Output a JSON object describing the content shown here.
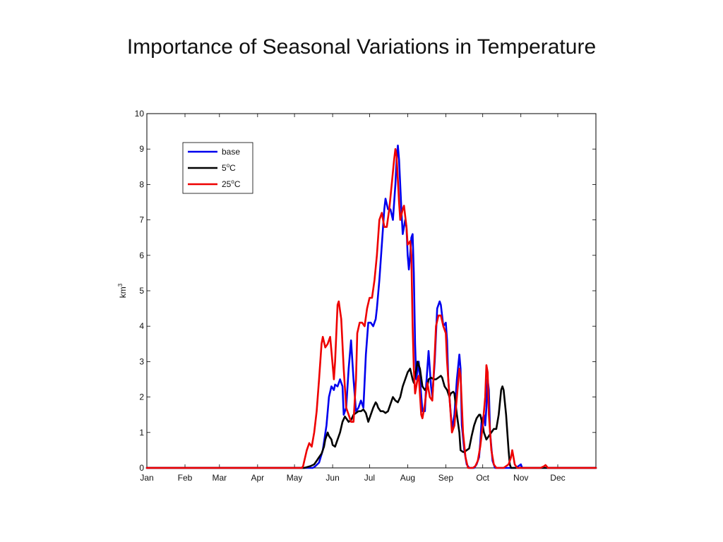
{
  "slide": {
    "title": "Importance of Seasonal Variations in Temperature"
  },
  "chart_data": {
    "type": "line",
    "ylabel": "km³",
    "xlabel": "",
    "ylim": [
      0,
      10
    ],
    "yticks": [
      0,
      1,
      2,
      3,
      4,
      5,
      6,
      7,
      8,
      9,
      10
    ],
    "xlim": [
      0,
      365
    ],
    "x_tick_labels": [
      "Jan",
      "Feb",
      "Mar",
      "Apr",
      "May",
      "Jun",
      "Jul",
      "Aug",
      "Sep",
      "Oct",
      "Nov",
      "Dec"
    ],
    "x_tick_days": [
      0,
      31,
      59,
      90,
      120,
      151,
      181,
      212,
      243,
      273,
      304,
      334
    ],
    "legend_position": "top-left",
    "grid": false,
    "series": [
      {
        "name": "base",
        "legend_base": "base",
        "legend_sup": "",
        "legend_tail": "",
        "color": "#0000ee",
        "points": [
          [
            0,
            0
          ],
          [
            120,
            0
          ],
          [
            135,
            0
          ],
          [
            137,
            0.05
          ],
          [
            140,
            0.15
          ],
          [
            143,
            0.5
          ],
          [
            146,
            1.2
          ],
          [
            148,
            2.0
          ],
          [
            150,
            2.3
          ],
          [
            152,
            2.2
          ],
          [
            153,
            2.35
          ],
          [
            155,
            2.3
          ],
          [
            157,
            2.5
          ],
          [
            159,
            2.3
          ],
          [
            160,
            1.5
          ],
          [
            162,
            1.7
          ],
          [
            164,
            2.8
          ],
          [
            166,
            3.6
          ],
          [
            168,
            2.5
          ],
          [
            170,
            1.6
          ],
          [
            172,
            1.7
          ],
          [
            174,
            1.9
          ],
          [
            176,
            1.7
          ],
          [
            178,
            3.2
          ],
          [
            180,
            4.1
          ],
          [
            182,
            4.1
          ],
          [
            184,
            4.0
          ],
          [
            186,
            4.2
          ],
          [
            187,
            4.5
          ],
          [
            189,
            5.3
          ],
          [
            191,
            6.3
          ],
          [
            193,
            7.3
          ],
          [
            194,
            7.6
          ],
          [
            196,
            7.3
          ],
          [
            198,
            7.3
          ],
          [
            200,
            7.0
          ],
          [
            202,
            8.0
          ],
          [
            203,
            8.7
          ],
          [
            204,
            9.1
          ],
          [
            205,
            8.7
          ],
          [
            207,
            7.2
          ],
          [
            208,
            6.6
          ],
          [
            210,
            7.0
          ],
          [
            211,
            6.8
          ],
          [
            212,
            6.0
          ],
          [
            213,
            5.6
          ],
          [
            214,
            6.0
          ],
          [
            215,
            6.5
          ],
          [
            216,
            6.6
          ],
          [
            217,
            5.5
          ],
          [
            218,
            3.5
          ],
          [
            219,
            2.5
          ],
          [
            221,
            3.0
          ],
          [
            222,
            2.5
          ],
          [
            224,
            1.6
          ],
          [
            226,
            1.6
          ],
          [
            227,
            2.3
          ],
          [
            229,
            3.3
          ],
          [
            231,
            2.3
          ],
          [
            232,
            2.0
          ],
          [
            234,
            3.0
          ],
          [
            236,
            4.5
          ],
          [
            238,
            4.7
          ],
          [
            239,
            4.6
          ],
          [
            241,
            4.0
          ],
          [
            243,
            4.1
          ],
          [
            244,
            3.6
          ],
          [
            245,
            2.5
          ],
          [
            246,
            2.0
          ],
          [
            248,
            1.1
          ],
          [
            250,
            1.5
          ],
          [
            252,
            2.5
          ],
          [
            254,
            3.2
          ],
          [
            255,
            2.8
          ],
          [
            256,
            1.2
          ],
          [
            258,
            0.5
          ],
          [
            260,
            0.1
          ],
          [
            262,
            0
          ],
          [
            266,
            0
          ],
          [
            268,
            0.1
          ],
          [
            269,
            0.2
          ],
          [
            270,
            0.3
          ],
          [
            271,
            0.7
          ],
          [
            272,
            1.3
          ],
          [
            274,
            1.5
          ],
          [
            275,
            1.2
          ],
          [
            276,
            1.7
          ],
          [
            277,
            2.5
          ],
          [
            278,
            2.2
          ],
          [
            279,
            1.0
          ],
          [
            281,
            0.2
          ],
          [
            283,
            0
          ],
          [
            300,
            0
          ],
          [
            302,
            0.05
          ],
          [
            304,
            0.1
          ],
          [
            305,
            0
          ],
          [
            320,
            0
          ],
          [
            365,
            0
          ]
        ]
      },
      {
        "name": "5°C",
        "legend_base": "5",
        "legend_sup": "o",
        "legend_tail": "C",
        "color": "#000000",
        "points": [
          [
            0,
            0
          ],
          [
            128,
            0
          ],
          [
            130,
            0.02
          ],
          [
            133,
            0.05
          ],
          [
            136,
            0.1
          ],
          [
            138,
            0.2
          ],
          [
            140,
            0.3
          ],
          [
            142,
            0.4
          ],
          [
            144,
            0.6
          ],
          [
            145,
            0.8
          ],
          [
            147,
            1.0
          ],
          [
            148,
            0.9
          ],
          [
            150,
            0.8
          ],
          [
            151,
            0.65
          ],
          [
            153,
            0.6
          ],
          [
            155,
            0.8
          ],
          [
            157,
            1.0
          ],
          [
            159,
            1.3
          ],
          [
            161,
            1.45
          ],
          [
            162,
            1.4
          ],
          [
            164,
            1.3
          ],
          [
            166,
            1.35
          ],
          [
            168,
            1.5
          ],
          [
            170,
            1.55
          ],
          [
            172,
            1.6
          ],
          [
            174,
            1.6
          ],
          [
            176,
            1.65
          ],
          [
            178,
            1.55
          ],
          [
            180,
            1.3
          ],
          [
            182,
            1.5
          ],
          [
            184,
            1.7
          ],
          [
            186,
            1.85
          ],
          [
            187,
            1.8
          ],
          [
            188,
            1.7
          ],
          [
            190,
            1.6
          ],
          [
            192,
            1.6
          ],
          [
            194,
            1.55
          ],
          [
            196,
            1.6
          ],
          [
            198,
            1.8
          ],
          [
            200,
            2.0
          ],
          [
            202,
            1.9
          ],
          [
            204,
            1.85
          ],
          [
            206,
            2.0
          ],
          [
            208,
            2.3
          ],
          [
            210,
            2.5
          ],
          [
            212,
            2.7
          ],
          [
            214,
            2.8
          ],
          [
            216,
            2.5
          ],
          [
            217,
            2.4
          ],
          [
            218,
            2.6
          ],
          [
            220,
            3.0
          ],
          [
            222,
            2.8
          ],
          [
            224,
            2.3
          ],
          [
            226,
            2.2
          ],
          [
            228,
            2.3
          ],
          [
            229,
            2.5
          ],
          [
            231,
            2.55
          ],
          [
            233,
            2.5
          ],
          [
            235,
            2.5
          ],
          [
            237,
            2.55
          ],
          [
            239,
            2.6
          ],
          [
            240,
            2.55
          ],
          [
            242,
            2.3
          ],
          [
            244,
            2.2
          ],
          [
            246,
            2.0
          ],
          [
            247,
            2.1
          ],
          [
            249,
            2.15
          ],
          [
            250,
            2.1
          ],
          [
            252,
            1.5
          ],
          [
            254,
            1.0
          ],
          [
            255,
            0.5
          ],
          [
            257,
            0.45
          ],
          [
            258,
            0.45
          ],
          [
            260,
            0.5
          ],
          [
            262,
            0.55
          ],
          [
            264,
            0.9
          ],
          [
            266,
            1.2
          ],
          [
            268,
            1.4
          ],
          [
            270,
            1.5
          ],
          [
            271,
            1.5
          ],
          [
            273,
            1.2
          ],
          [
            274,
            1.0
          ],
          [
            276,
            0.8
          ],
          [
            278,
            0.9
          ],
          [
            280,
            1.0
          ],
          [
            282,
            1.1
          ],
          [
            284,
            1.1
          ],
          [
            286,
            1.5
          ],
          [
            288,
            2.2
          ],
          [
            289,
            2.3
          ],
          [
            290,
            2.2
          ],
          [
            292,
            1.5
          ],
          [
            294,
            0.5
          ],
          [
            295,
            0.1
          ],
          [
            296,
            0
          ],
          [
            365,
            0
          ]
        ]
      },
      {
        "name": "25°C",
        "legend_base": "25",
        "legend_sup": "o",
        "legend_tail": "C",
        "color": "#ee0000",
        "points": [
          [
            0,
            0
          ],
          [
            126,
            0
          ],
          [
            127,
            0.05
          ],
          [
            128,
            0.2
          ],
          [
            130,
            0.5
          ],
          [
            132,
            0.7
          ],
          [
            134,
            0.6
          ],
          [
            136,
            1.0
          ],
          [
            138,
            1.6
          ],
          [
            140,
            2.5
          ],
          [
            142,
            3.5
          ],
          [
            143,
            3.7
          ],
          [
            145,
            3.4
          ],
          [
            147,
            3.5
          ],
          [
            149,
            3.7
          ],
          [
            150,
            3.3
          ],
          [
            152,
            2.5
          ],
          [
            153,
            3.0
          ],
          [
            155,
            4.6
          ],
          [
            156,
            4.7
          ],
          [
            158,
            4.2
          ],
          [
            160,
            2.8
          ],
          [
            162,
            1.7
          ],
          [
            164,
            1.5
          ],
          [
            166,
            1.3
          ],
          [
            168,
            1.3
          ],
          [
            170,
            2.5
          ],
          [
            171,
            3.8
          ],
          [
            173,
            4.1
          ],
          [
            175,
            4.1
          ],
          [
            177,
            4.0
          ],
          [
            179,
            4.5
          ],
          [
            181,
            4.8
          ],
          [
            183,
            4.8
          ],
          [
            185,
            5.3
          ],
          [
            187,
            6.0
          ],
          [
            189,
            7.0
          ],
          [
            191,
            7.2
          ],
          [
            193,
            6.8
          ],
          [
            195,
            6.8
          ],
          [
            197,
            7.3
          ],
          [
            199,
            8.0
          ],
          [
            201,
            8.7
          ],
          [
            202,
            9.0
          ],
          [
            203,
            8.8
          ],
          [
            205,
            7.5
          ],
          [
            206,
            7.0
          ],
          [
            208,
            7.3
          ],
          [
            209,
            7.4
          ],
          [
            211,
            6.8
          ],
          [
            212,
            6.3
          ],
          [
            214,
            6.4
          ],
          [
            215,
            6.0
          ],
          [
            216,
            4.0
          ],
          [
            217,
            2.8
          ],
          [
            218,
            2.1
          ],
          [
            220,
            2.5
          ],
          [
            221,
            2.6
          ],
          [
            223,
            1.5
          ],
          [
            224,
            1.4
          ],
          [
            226,
            1.8
          ],
          [
            228,
            2.4
          ],
          [
            230,
            2.0
          ],
          [
            232,
            1.9
          ],
          [
            234,
            3.2
          ],
          [
            235,
            4.0
          ],
          [
            237,
            4.3
          ],
          [
            239,
            4.3
          ],
          [
            241,
            4.0
          ],
          [
            243,
            3.8
          ],
          [
            244,
            3.0
          ],
          [
            246,
            2.0
          ],
          [
            248,
            1.0
          ],
          [
            250,
            1.2
          ],
          [
            252,
            2.0
          ],
          [
            254,
            2.8
          ],
          [
            255,
            2.6
          ],
          [
            257,
            1.0
          ],
          [
            259,
            0.3
          ],
          [
            261,
            0
          ],
          [
            265,
            0
          ],
          [
            267,
            0.05
          ],
          [
            269,
            0.2
          ],
          [
            271,
            0.6
          ],
          [
            273,
            1.2
          ],
          [
            275,
            2.0
          ],
          [
            276,
            2.9
          ],
          [
            277,
            2.7
          ],
          [
            278,
            1.5
          ],
          [
            280,
            0.5
          ],
          [
            282,
            0.1
          ],
          [
            284,
            0
          ],
          [
            290,
            0
          ],
          [
            292,
            0.05
          ],
          [
            294,
            0.1
          ],
          [
            296,
            0.3
          ],
          [
            297,
            0.5
          ],
          [
            298,
            0.3
          ],
          [
            299,
            0.1
          ],
          [
            301,
            0
          ],
          [
            320,
            0
          ],
          [
            323,
            0.05
          ],
          [
            324,
            0.08
          ],
          [
            326,
            0
          ],
          [
            365,
            0
          ]
        ]
      }
    ]
  }
}
